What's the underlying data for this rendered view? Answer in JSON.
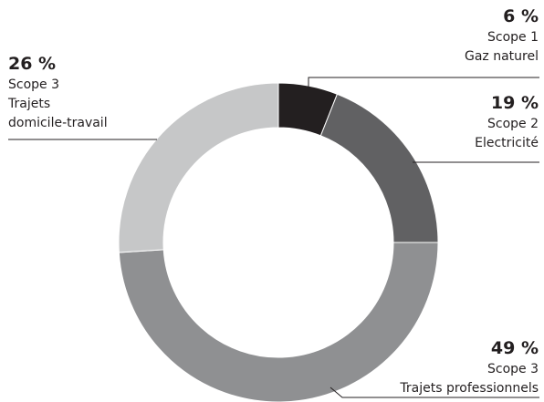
{
  "chart_data": {
    "type": "pie",
    "variant": "donut",
    "series": [
      {
        "name": "",
        "slices": [
          {
            "percent_label": "6 %",
            "value": 6,
            "lines": [
              "Scope 1",
              "Gaz naturel"
            ],
            "color": "#231f20"
          },
          {
            "percent_label": "19 %",
            "value": 19,
            "lines": [
              "Scope 2",
              "Electricité"
            ],
            "color": "#616163"
          },
          {
            "percent_label": "49 %",
            "value": 49,
            "lines": [
              "Scope 3",
              "Trajets professionnels"
            ],
            "color": "#8f9092"
          },
          {
            "percent_label": "26 %",
            "value": 26,
            "lines": [
              "Scope 3",
              "Trajets",
              "domicile-travail"
            ],
            "color": "#c6c7c8"
          }
        ]
      }
    ],
    "start_position": "top, clockwise",
    "title": "",
    "legend": "none",
    "leader_line_color": "#231f20"
  }
}
